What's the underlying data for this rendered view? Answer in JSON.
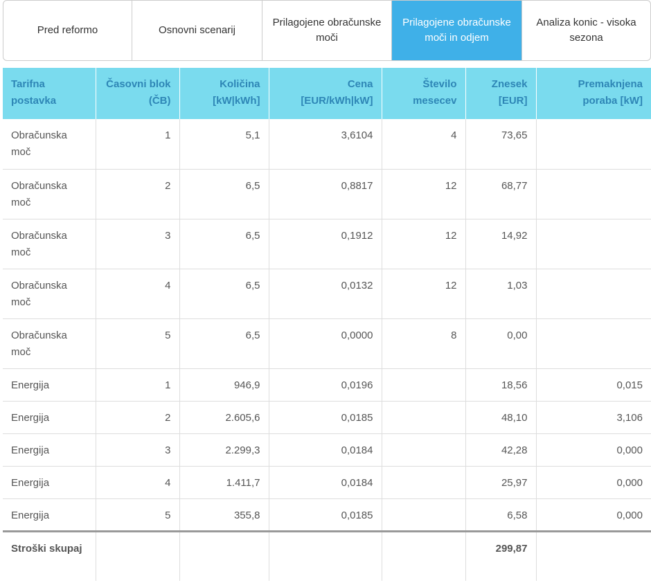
{
  "tabs": [
    {
      "label": "Pred reformo",
      "active": false
    },
    {
      "label": "Osnovni scenarij",
      "active": false
    },
    {
      "label": "Prilagojene obračunske moči",
      "active": false
    },
    {
      "label": "Prilagojene obračunske moči in odjem",
      "active": true
    },
    {
      "label": "Analiza konic - visoka sezona",
      "active": false
    }
  ],
  "colors": {
    "active_tab": "#3fb0e8",
    "header_bg": "#7adbee",
    "header_text": "#2e86b6"
  },
  "table": {
    "headers": [
      "Tarifna postavka",
      "Časovni blok (ČB)",
      "Količina [kW|kWh]",
      "Cena [EUR/kWh|kW]",
      "Število mesecev",
      "Znesek [EUR]",
      "Premaknjena poraba [kW]"
    ],
    "rows": [
      {
        "type": "power",
        "cells": [
          "Obračunska moč",
          "1",
          "5,1",
          "3,6104",
          "4",
          "73,65",
          ""
        ]
      },
      {
        "type": "power",
        "cells": [
          "Obračunska moč",
          "2",
          "6,5",
          "0,8817",
          "12",
          "68,77",
          ""
        ]
      },
      {
        "type": "power",
        "cells": [
          "Obračunska moč",
          "3",
          "6,5",
          "0,1912",
          "12",
          "14,92",
          ""
        ]
      },
      {
        "type": "power",
        "cells": [
          "Obračunska moč",
          "4",
          "6,5",
          "0,0132",
          "12",
          "1,03",
          ""
        ]
      },
      {
        "type": "power",
        "cells": [
          "Obračunska moč",
          "5",
          "6,5",
          "0,0000",
          "8",
          "0,00",
          ""
        ]
      },
      {
        "type": "energy",
        "cells": [
          "Energija",
          "1",
          "946,9",
          "0,0196",
          "",
          "18,56",
          "0,015"
        ]
      },
      {
        "type": "energy",
        "cells": [
          "Energija",
          "2",
          "2.605,6",
          "0,0185",
          "",
          "48,10",
          "3,106"
        ]
      },
      {
        "type": "energy",
        "cells": [
          "Energija",
          "3",
          "2.299,3",
          "0,0184",
          "",
          "42,28",
          "0,000"
        ]
      },
      {
        "type": "energy",
        "cells": [
          "Energija",
          "4",
          "1.411,7",
          "0,0184",
          "",
          "25,97",
          "0,000"
        ]
      },
      {
        "type": "energy",
        "cells": [
          "Energija",
          "5",
          "355,8",
          "0,0185",
          "",
          "6,58",
          "0,000"
        ]
      }
    ],
    "total": {
      "label": "Stroški skupaj",
      "amount": "299,87"
    }
  }
}
